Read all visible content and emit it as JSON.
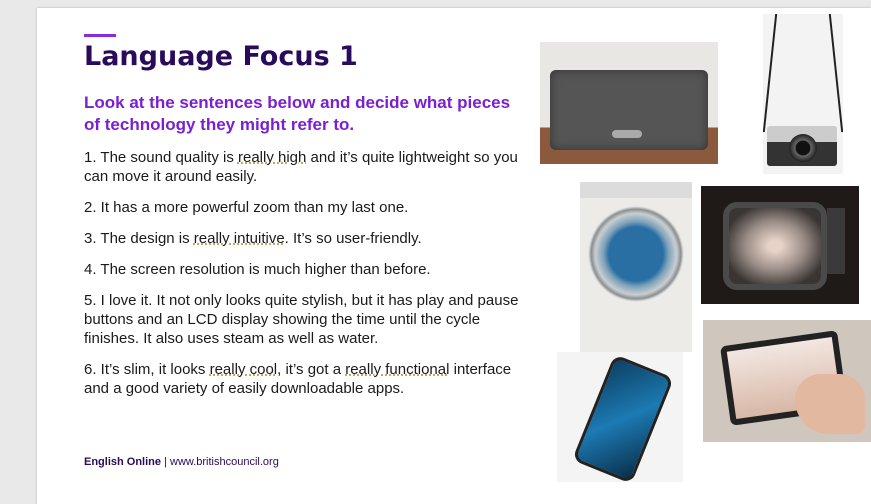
{
  "slide": {
    "title": "Language Focus 1",
    "instruction": "Look at the sentences below and decide what pieces of technology they might refer to.",
    "sentences": [
      {
        "p1": "1. The sound quality is ",
        "hl1": "really high",
        "p2": " and it’s quite lightweight so you can move it around easily."
      },
      {
        "p1": "2. It has a more powerful zoom than my last one."
      },
      {
        "p1": "3. The design is ",
        "hl1": "really intuitive",
        "p2": ". It’s so user-friendly."
      },
      {
        "p1": "4. The screen resolution is much higher than before."
      },
      {
        "p1": "5. I love it. It not only looks quite stylish, but it has play and pause buttons and an LCD display showing the time until the cycle finishes. It also uses steam as well as water."
      },
      {
        "p1": "6. It’s slim, it looks ",
        "hl1": "really cool",
        "p2": ", it’s got a ",
        "hl2": "really functional",
        "p3": " interface and a good variety of easily downloadable apps."
      }
    ],
    "footer": {
      "brand": "English Online",
      "separator": " | ",
      "url": "www.britishcouncil.org"
    }
  },
  "images": [
    "speaker",
    "camera",
    "washing-machine",
    "retro-tv",
    "smartphone",
    "tablet"
  ]
}
